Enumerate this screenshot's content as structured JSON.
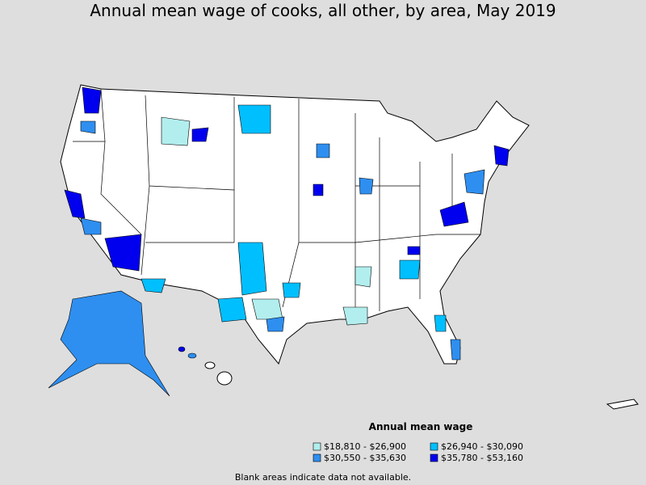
{
  "title": "Annual mean wage of cooks, all other, by area, May 2019",
  "legend": {
    "title": "Annual mean wage",
    "items": [
      {
        "label": "$18,810 - $26,900",
        "color": "#b2eeee"
      },
      {
        "label": "$26,940 - $30,090",
        "color": "#00bfff"
      },
      {
        "label": "$30,550 - $35,630",
        "color": "#2e8ff0"
      },
      {
        "label": "$35,780 - $53,160",
        "color": "#0000ee"
      }
    ]
  },
  "note": "Blank areas indicate data not available."
}
